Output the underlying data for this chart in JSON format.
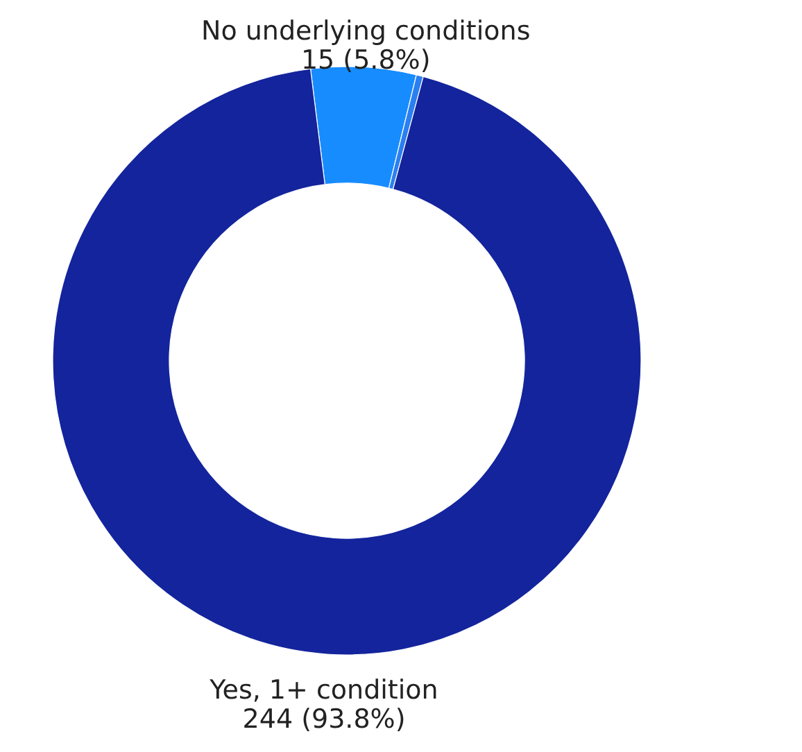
{
  "chart_data": {
    "type": "donut",
    "categories": [
      "No underlying conditions",
      null,
      "Yes, 1+ condition"
    ],
    "values": [
      15,
      1,
      244
    ],
    "colors": [
      "#178cff",
      "#2b7ff0",
      "#13249c"
    ],
    "value_labels": [
      "15 (5.8%)",
      null,
      "244 (93.8%)"
    ],
    "legend": false
  }
}
